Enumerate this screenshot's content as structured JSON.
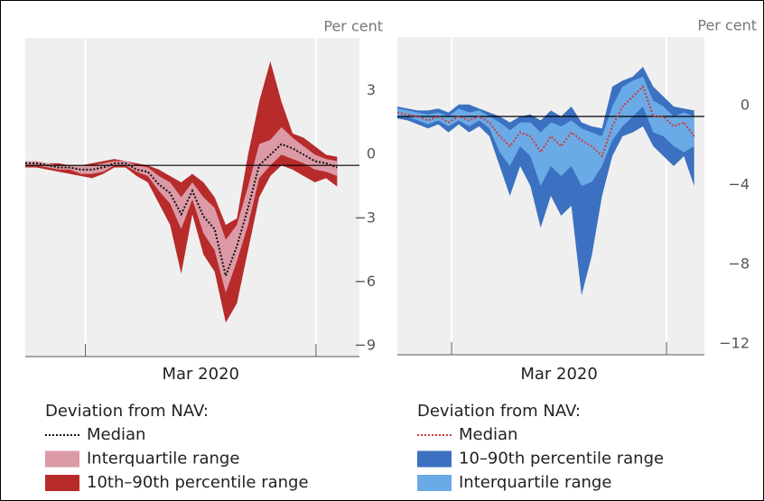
{
  "chart_data": [
    {
      "type": "band",
      "unit_label": "Per cent",
      "legend_title": "Deviation from NAV:",
      "x": [
        0,
        1,
        2,
        3,
        4,
        5,
        6,
        7,
        8,
        9,
        10,
        11,
        12,
        13,
        14,
        15,
        16,
        17,
        18,
        19,
        20,
        21,
        22,
        23,
        24,
        25,
        26,
        27,
        28
      ],
      "xlim": [
        0,
        30
      ],
      "xticks": [
        5.4,
        26.1
      ],
      "period_label": "Mar 2020",
      "ylim": [
        -9,
        6
      ],
      "yticks": [
        3,
        0,
        {
          "value": -3,
          "label": "−3"
        },
        {
          "value": -6,
          "label": "−6"
        },
        {
          "value": -9,
          "label": "−9"
        }
      ],
      "series": [
        {
          "name": "Median",
          "color": "#111111",
          "style": "dotted",
          "values": [
            0.1,
            0.1,
            0,
            -0.1,
            -0.1,
            -0.2,
            -0.2,
            -0.1,
            0.1,
            0.1,
            -0.2,
            -0.3,
            -0.9,
            -1.3,
            -2.3,
            -1.2,
            -2.4,
            -3,
            -5.2,
            -3.8,
            -2,
            0,
            0.5,
            1,
            0.8,
            0.5,
            0.2,
            0.1,
            -0.1
          ]
        },
        {
          "name": "Interquartile range",
          "color": "#dc9aa6",
          "upper": [
            0.2,
            0.2,
            0.1,
            0,
            0,
            0,
            0,
            0.1,
            0.2,
            0.2,
            0,
            -0.1,
            -0.5,
            -0.8,
            -1.5,
            -0.8,
            -1.5,
            -2,
            -3.5,
            -2.8,
            -1,
            1,
            1.2,
            1.8,
            1.3,
            0.9,
            0.5,
            0.3,
            0.2
          ],
          "lower": [
            0,
            0,
            -0.1,
            -0.2,
            -0.2,
            -0.4,
            -0.4,
            -0.3,
            0,
            0,
            -0.3,
            -0.5,
            -1.2,
            -1.8,
            -3,
            -1.6,
            -3.2,
            -4,
            -6,
            -4.5,
            -2.8,
            -0.6,
            0,
            0.5,
            0.3,
            0.1,
            -0.2,
            -0.3,
            -0.5
          ]
        },
        {
          "name": "10th–90th percentile range",
          "color": "#b72b2b",
          "upper": [
            0.2,
            0.2,
            0.1,
            0.1,
            0,
            0,
            0.1,
            0.2,
            0.3,
            0.2,
            0.1,
            0,
            -0.2,
            -0.5,
            -0.8,
            -0.4,
            -0.8,
            -1.5,
            -2.8,
            -2.5,
            0.5,
            3,
            4.9,
            3,
            1.5,
            1.3,
            0.9,
            0.5,
            0.4
          ],
          "lower": [
            -0.1,
            -0.1,
            -0.2,
            -0.3,
            -0.4,
            -0.5,
            -0.6,
            -0.4,
            -0.1,
            -0.1,
            -0.5,
            -0.8,
            -1.8,
            -2.8,
            -5.1,
            -2.3,
            -4.2,
            -5,
            -7.4,
            -6.5,
            -4,
            -1.5,
            -0.5,
            0,
            -0.2,
            -0.5,
            -0.8,
            -0.6,
            -1
          ]
        }
      ]
    },
    {
      "type": "band",
      "unit_label": "Per cent",
      "legend_title": "Deviation from NAV:",
      "x": [
        0,
        1,
        2,
        3,
        4,
        5,
        6,
        7,
        8,
        9,
        10,
        11,
        12,
        13,
        14,
        15,
        16,
        17,
        18,
        19,
        20,
        21,
        22,
        23,
        24,
        25,
        26,
        27,
        28,
        29
      ],
      "xlim": [
        0,
        30
      ],
      "xticks": [
        5.3,
        26.3
      ],
      "period_label": "Mar 2020",
      "ylim": [
        -12,
        4
      ],
      "yticks": [
        0,
        {
          "value": -4,
          "label": "−4"
        },
        {
          "value": -8,
          "label": "−8"
        },
        {
          "value": -12,
          "label": "−12"
        }
      ],
      "series": [
        {
          "name": "Median",
          "color": "#d03a3a",
          "style": "dotted",
          "values": [
            0.2,
            0.1,
            0,
            -0.2,
            0,
            -0.3,
            0,
            -0.2,
            0,
            -0.3,
            -1,
            -1.5,
            -0.8,
            -1,
            -1.8,
            -1,
            -1.5,
            -0.8,
            -1.2,
            -1.5,
            -2,
            -0.5,
            0.5,
            1,
            1.5,
            0,
            0,
            -0.5,
            -0.3,
            -1
          ]
        },
        {
          "name": "10–90th percentile range",
          "color": "#3b71c0",
          "upper": [
            0.5,
            0.4,
            0.3,
            0.3,
            0.4,
            0.2,
            0.6,
            0.6,
            0.4,
            0.2,
            0,
            -0.3,
            0,
            0.1,
            -0.2,
            0.3,
            0,
            0.5,
            -0.3,
            -0.5,
            -0.6,
            1.5,
            1.8,
            2,
            2.5,
            1.5,
            1,
            0.5,
            0.4,
            0.3
          ],
          "lower": [
            -0.1,
            -0.2,
            -0.4,
            -0.6,
            -0.4,
            -0.8,
            -0.4,
            -0.8,
            -0.5,
            -1,
            -2.5,
            -4,
            -2.5,
            -3.5,
            -5.6,
            -4,
            -5,
            -4.5,
            -9,
            -7,
            -4,
            -2,
            -1,
            -0.8,
            -0.5,
            -1.5,
            -2,
            -2.5,
            -2,
            -3.5
          ]
        },
        {
          "name": "Interquartile range",
          "color": "#6aaae6",
          "upper": [
            0.4,
            0.3,
            0.2,
            0.1,
            0.2,
            0,
            0.4,
            0.2,
            0.3,
            0,
            -0.3,
            -0.7,
            -0.3,
            -0.3,
            -0.8,
            -0.3,
            -0.5,
            -0.2,
            -0.6,
            -0.8,
            -1,
            0.5,
            1.5,
            1.8,
            2,
            0.8,
            0.5,
            0,
            0.2,
            0
          ],
          "lower": [
            0,
            0,
            -0.2,
            -0.4,
            -0.2,
            -0.5,
            -0.2,
            -0.5,
            -0.2,
            -0.6,
            -1.8,
            -2.5,
            -1.5,
            -2,
            -3.5,
            -2.5,
            -3,
            -2.5,
            -3.5,
            -3.3,
            -2.5,
            -1.2,
            -0.5,
            0,
            0.5,
            -0.8,
            -1,
            -1.5,
            -1.8,
            -1.5
          ]
        }
      ]
    }
  ]
}
